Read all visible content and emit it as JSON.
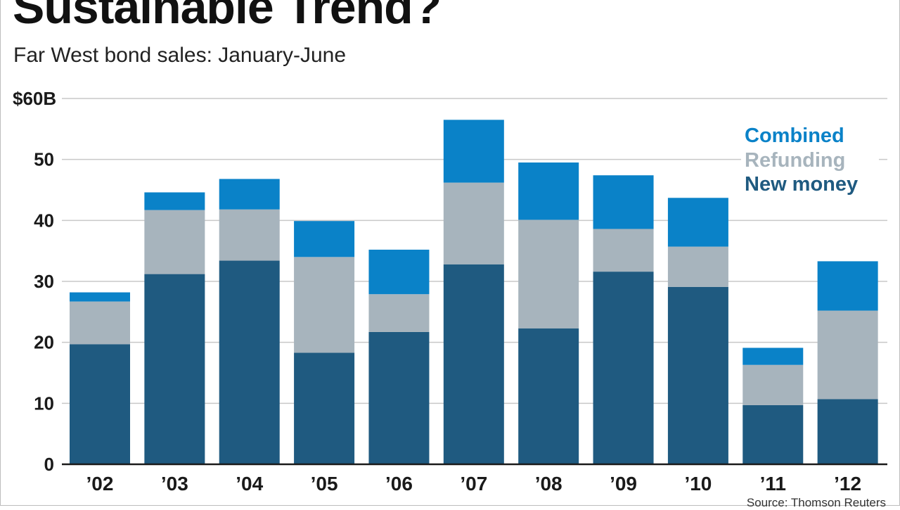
{
  "header": {
    "title": "Sustainable Trend?",
    "subtitle": "Far West bond sales: January-June"
  },
  "footer": {
    "source": "Source: Thomson Reuters"
  },
  "colors": {
    "new_money": "#1f5a80",
    "refunding": "#a7b4bd",
    "combined": "#0a82c8",
    "gridline": "#c8c8c8",
    "axis": "#1a1a1a"
  },
  "chart_data": {
    "type": "bar",
    "stacked": true,
    "categories": [
      "’02",
      "’03",
      "’04",
      "’05",
      "’06",
      "’07",
      "’08",
      "’09",
      "’10",
      "’11",
      "’12"
    ],
    "series": [
      {
        "name": "New money",
        "values": [
          19.7,
          31.2,
          33.4,
          18.3,
          21.7,
          32.8,
          22.3,
          31.6,
          29.1,
          9.7,
          10.7
        ]
      },
      {
        "name": "Refunding",
        "values": [
          7.0,
          10.5,
          8.4,
          15.7,
          6.2,
          13.4,
          17.8,
          7.0,
          6.6,
          6.6,
          14.5
        ]
      },
      {
        "name": "Combined",
        "values": [
          1.5,
          2.9,
          5.0,
          5.9,
          7.3,
          10.3,
          9.4,
          8.8,
          8.0,
          2.8,
          8.1
        ]
      }
    ],
    "ylim": [
      0,
      60
    ],
    "yticks": [
      0,
      10,
      20,
      30,
      40,
      50,
      60
    ],
    "ytick_labels": [
      "0",
      "10",
      "20",
      "30",
      "40",
      "50",
      "$60B"
    ],
    "grid": true,
    "legend": {
      "placement": "top-right",
      "entries": [
        "Combined",
        "Refunding",
        "New money"
      ]
    }
  }
}
